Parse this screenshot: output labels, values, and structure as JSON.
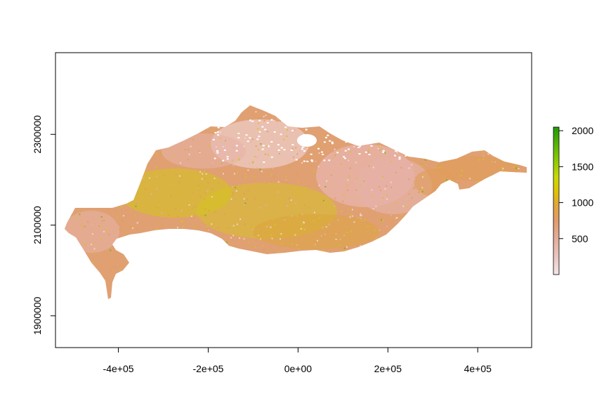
{
  "chart_data": {
    "type": "raster-map",
    "x_ticks": [
      {
        "value": -400000,
        "label": "-4e+05"
      },
      {
        "value": -200000,
        "label": "-2e+05"
      },
      {
        "value": 0,
        "label": "0e+00"
      },
      {
        "value": 200000,
        "label": "2e+05"
      },
      {
        "value": 400000,
        "label": "4e+05"
      }
    ],
    "y_ticks": [
      {
        "value": 1900000,
        "label": "1900000"
      },
      {
        "value": 2100000,
        "label": "2100000"
      },
      {
        "value": 2300000,
        "label": "2300000"
      }
    ],
    "xlim": [
      -540000,
      520000
    ],
    "ylim": [
      1830000,
      2480000
    ],
    "legend": {
      "position": "right",
      "range": [
        0,
        2050
      ],
      "ticks": [
        {
          "value": 500,
          "label": "500"
        },
        {
          "value": 1000,
          "label": "1000"
        },
        {
          "value": 1500,
          "label": "1500"
        },
        {
          "value": 2000,
          "label": "2000"
        }
      ],
      "colors": [
        "#f0e2e2",
        "#e5b1a6",
        "#e09a5d",
        "#e2c01e",
        "#d1dc00",
        "#7cc500",
        "#1a9a0a"
      ]
    },
    "box": true,
    "grid": false
  },
  "colors": {
    "low": "#e6b2a6",
    "mid": "#e09d58",
    "high": "#d4c51a",
    "peak": "#6cb800"
  }
}
